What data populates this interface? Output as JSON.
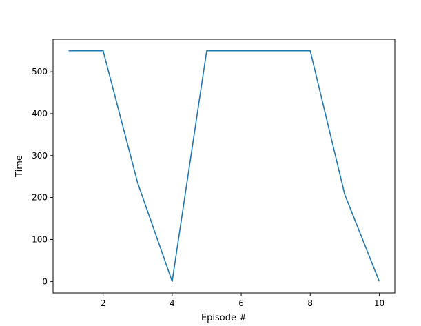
{
  "chart_data": {
    "type": "line",
    "title": "",
    "xlabel": "Episode #",
    "ylabel": "Time",
    "xlim": [
      0.55,
      10.45
    ],
    "ylim": [
      -27.5,
      577.5
    ],
    "xticks": [
      2,
      4,
      6,
      8,
      10
    ],
    "yticks": [
      0,
      100,
      200,
      300,
      400,
      500
    ],
    "grid": false,
    "legend": "none",
    "series": [
      {
        "name": "",
        "color": "#1f77b4",
        "x": [
          1,
          2,
          3,
          4,
          5,
          6,
          7,
          8,
          9,
          10
        ],
        "y": [
          550,
          550,
          235,
          0,
          550,
          550,
          550,
          550,
          207,
          0
        ]
      }
    ]
  }
}
